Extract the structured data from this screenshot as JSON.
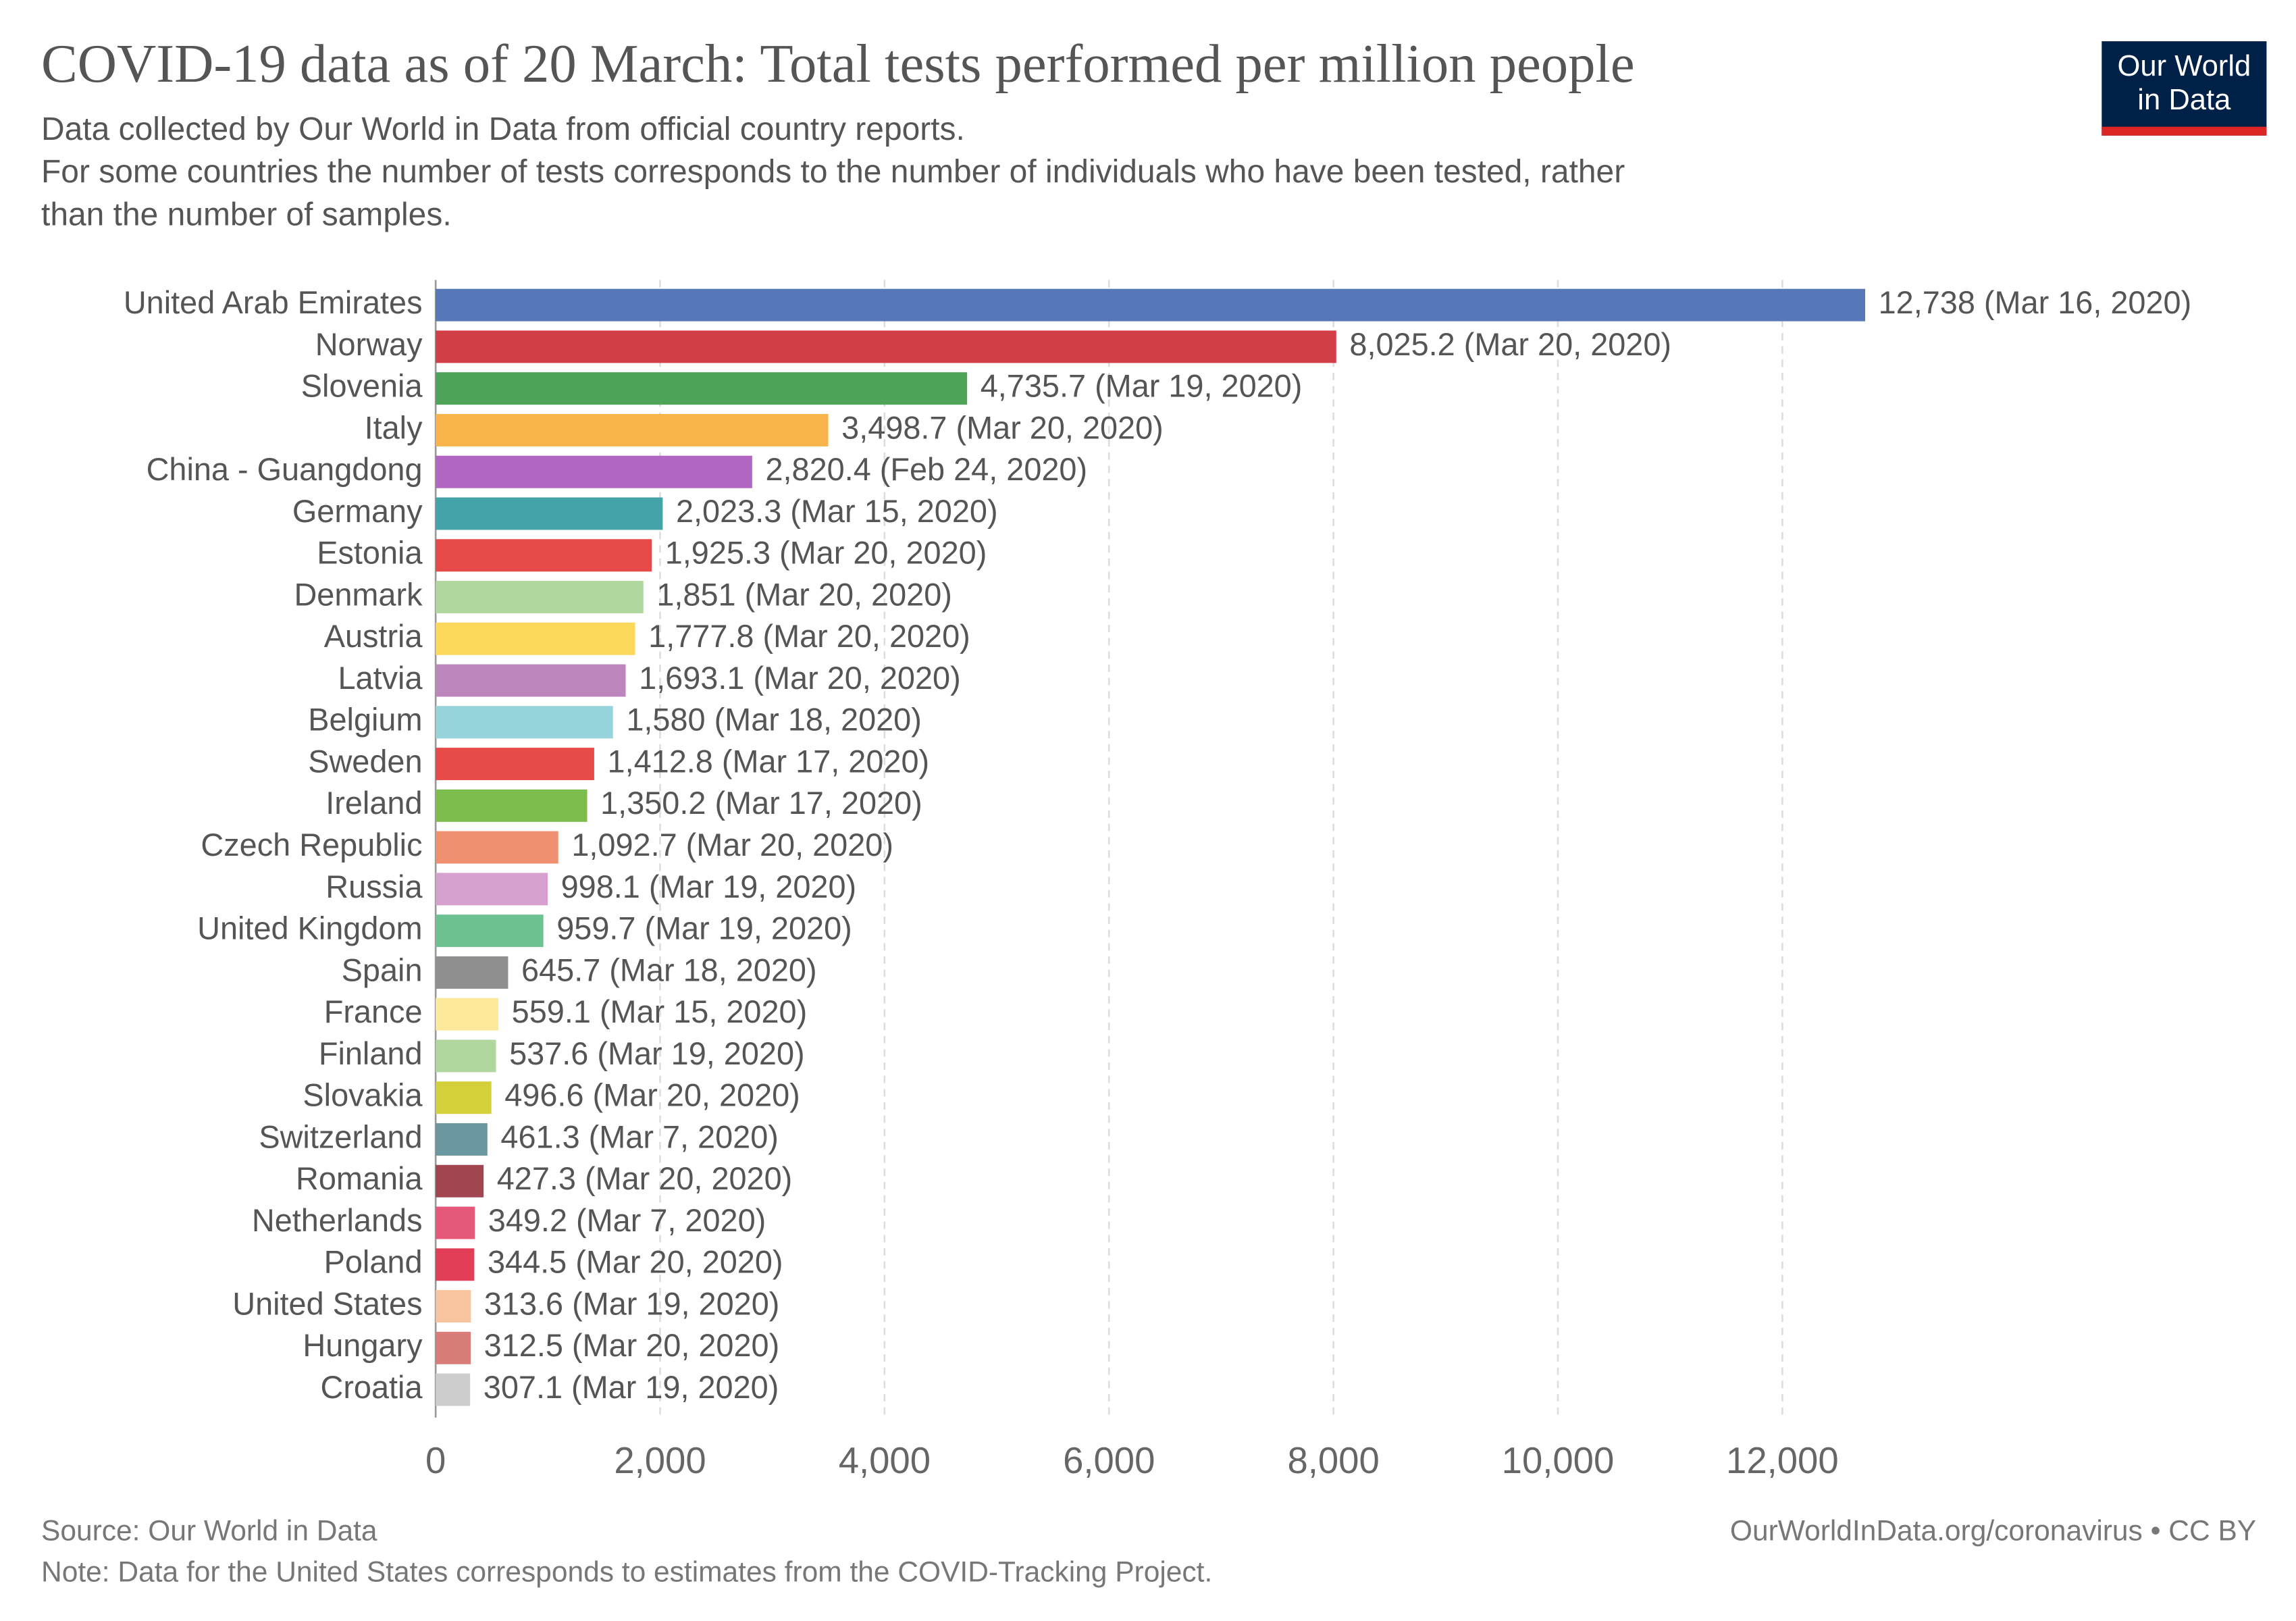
{
  "logo": [
    "Our World",
    "in Data"
  ],
  "chart_data": {
    "type": "bar",
    "orientation": "horizontal",
    "title": "COVID-19 data as of 20 March: Total tests performed per million people",
    "subtitle": [
      "Data collected by Our World in Data from official country reports.",
      "For some countries the number of tests corresponds to the number of individuals who have been tested, rather",
      "than the number of samples."
    ],
    "categories": [
      "United Arab Emirates",
      "Norway",
      "Slovenia",
      "Italy",
      "China - Guangdong",
      "Germany",
      "Estonia",
      "Denmark",
      "Austria",
      "Latvia",
      "Belgium",
      "Sweden",
      "Ireland",
      "Czech Republic",
      "Russia",
      "United Kingdom",
      "Spain",
      "France",
      "Finland",
      "Slovakia",
      "Switzerland",
      "Romania",
      "Netherlands",
      "Poland",
      "United States",
      "Hungary",
      "Croatia"
    ],
    "values": [
      12738,
      8025.2,
      4735.7,
      3498.7,
      2820.4,
      2023.3,
      1925.3,
      1851,
      1777.8,
      1693.1,
      1580,
      1412.8,
      1350.2,
      1092.7,
      998.1,
      959.7,
      645.7,
      559.1,
      537.6,
      496.6,
      461.3,
      427.3,
      349.2,
      344.5,
      313.6,
      312.5,
      307.1
    ],
    "value_labels": [
      "12,738 (Mar 16, 2020)",
      "8,025.2 (Mar 20, 2020)",
      "4,735.7 (Mar 19, 2020)",
      "3,498.7 (Mar 20, 2020)",
      "2,820.4 (Feb 24, 2020)",
      "2,023.3 (Mar 15, 2020)",
      "1,925.3 (Mar 20, 2020)",
      "1,851 (Mar 20, 2020)",
      "1,777.8 (Mar 20, 2020)",
      "1,693.1 (Mar 20, 2020)",
      "1,580 (Mar 18, 2020)",
      "1,412.8 (Mar 17, 2020)",
      "1,350.2 (Mar 17, 2020)",
      "1,092.7 (Mar 20, 2020)",
      "998.1 (Mar 19, 2020)",
      "959.7 (Mar 19, 2020)",
      "645.7 (Mar 18, 2020)",
      "559.1 (Mar 15, 2020)",
      "537.6 (Mar 19, 2020)",
      "496.6 (Mar 20, 2020)",
      "461.3 (Mar 7, 2020)",
      "427.3 (Mar 20, 2020)",
      "349.2 (Mar 7, 2020)",
      "344.5 (Mar 20, 2020)",
      "313.6 (Mar 19, 2020)",
      "312.5 (Mar 20, 2020)",
      "307.1 (Mar 19, 2020)"
    ],
    "colors": [
      "#5677b8",
      "#d33f49",
      "#4ea459",
      "#f8b44a",
      "#b266c4",
      "#44a3a9",
      "#e84a4a",
      "#b0d89e",
      "#fcd95b",
      "#bd86bc",
      "#96d3da",
      "#e84a4a",
      "#7dbd4d",
      "#ef9171",
      "#d6a1cf",
      "#6ec190",
      "#8f8f8f",
      "#fde99b",
      "#b0d89e",
      "#d4d03b",
      "#6b97a1",
      "#a14651",
      "#e5587a",
      "#e23e58",
      "#f9c4a0",
      "#d87d77",
      "#cdcdcd"
    ],
    "xlim": [
      0,
      12750
    ],
    "xticks": [
      0,
      {
        "value": 2000,
        "label": "2,000"
      },
      {
        "value": 4000,
        "label": "4,000"
      },
      {
        "value": 6000,
        "label": "6,000"
      },
      {
        "value": 8000,
        "label": "8,000"
      },
      {
        "value": 10000,
        "label": "10,000"
      },
      {
        "value": 12000,
        "label": "12,000"
      }
    ],
    "grid": true,
    "source": "Source: Our World in Data",
    "note": "Note: Data for the United States corresponds to estimates from the COVID-Tracking Project.",
    "credit": "OurWorldInData.org/coronavirus • CC BY"
  }
}
